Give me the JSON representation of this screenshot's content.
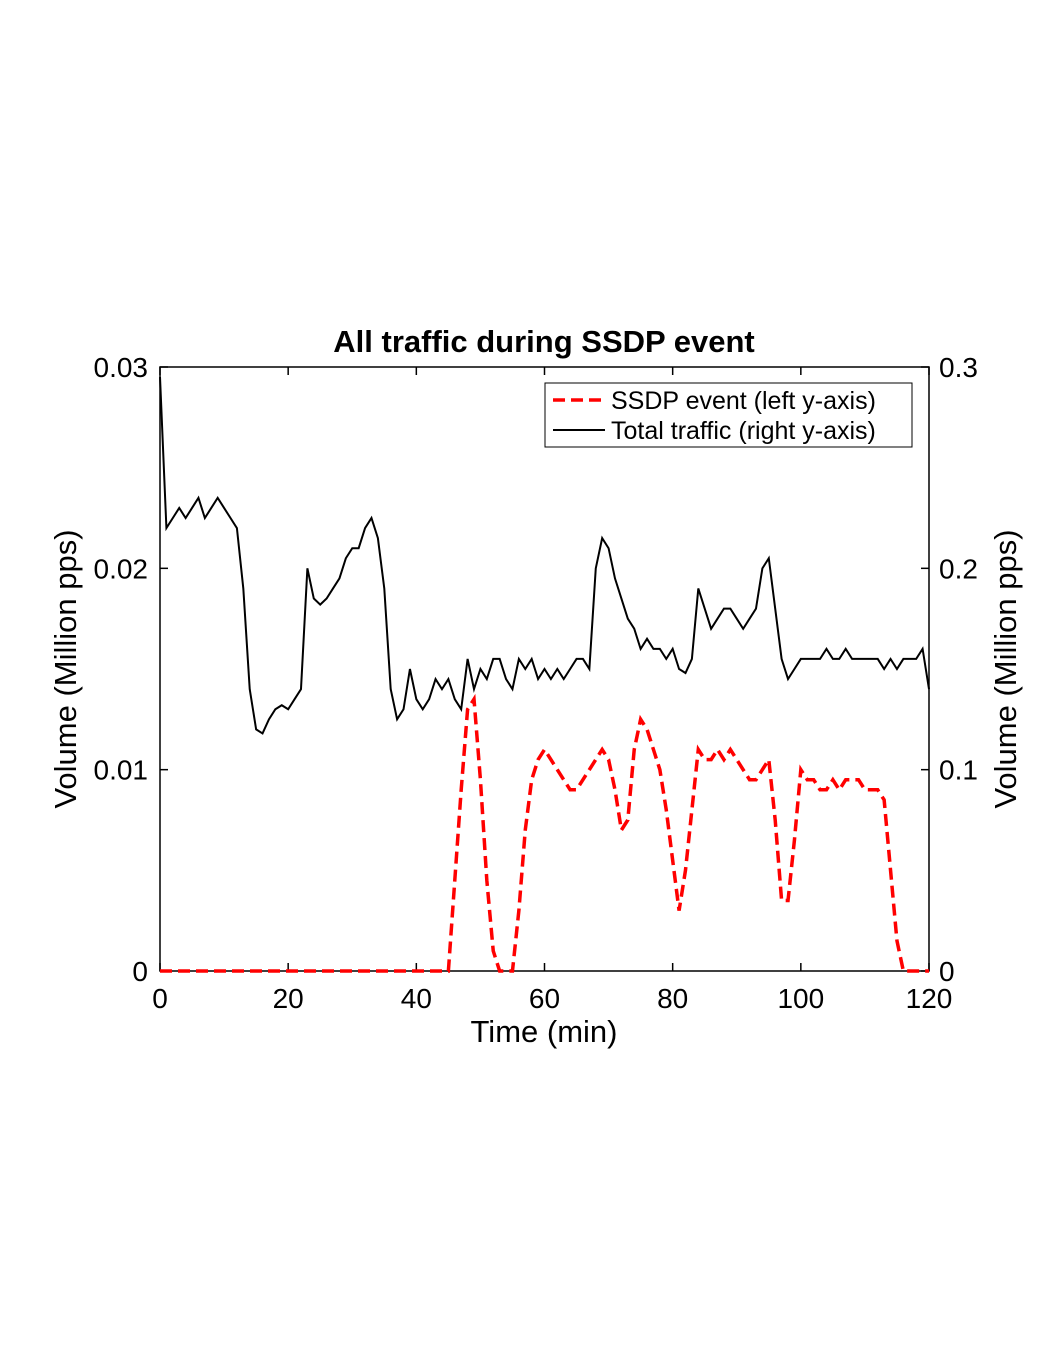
{
  "chart_data": {
    "type": "line",
    "title": "All traffic during SSDP event",
    "x_label": "Time (min)",
    "y_label": "Volume (Million pps)",
    "y2_label": "Volume (Million pps)",
    "x": [
      0,
      1,
      2,
      3,
      4,
      5,
      6,
      7,
      8,
      9,
      10,
      11,
      12,
      13,
      14,
      15,
      16,
      17,
      18,
      19,
      20,
      21,
      22,
      23,
      24,
      25,
      26,
      27,
      28,
      29,
      30,
      31,
      32,
      33,
      34,
      35,
      36,
      37,
      38,
      39,
      40,
      41,
      42,
      43,
      44,
      45,
      46,
      47,
      48,
      49,
      50,
      51,
      52,
      53,
      54,
      55,
      56,
      57,
      58,
      59,
      60,
      61,
      62,
      63,
      64,
      65,
      66,
      67,
      68,
      69,
      70,
      71,
      72,
      73,
      74,
      75,
      76,
      77,
      78,
      79,
      80,
      81,
      82,
      83,
      84,
      85,
      86,
      87,
      88,
      89,
      90,
      91,
      92,
      93,
      94,
      95,
      96,
      97,
      98,
      99,
      100,
      101,
      102,
      103,
      104,
      105,
      106,
      107,
      108,
      109,
      110,
      111,
      112,
      113,
      114,
      115,
      116,
      117,
      118,
      119,
      120
    ],
    "series": [
      {
        "name": "SSDP event (left y-axis)",
        "color": "#ff0000",
        "dash": true,
        "values": [
          0,
          0,
          0,
          0,
          0,
          0,
          0,
          0,
          0,
          0,
          0,
          0,
          0,
          0,
          0,
          0,
          0,
          0,
          0,
          0,
          0,
          0,
          0,
          0,
          0,
          0,
          0,
          0,
          0,
          0,
          0,
          0,
          0,
          0,
          0,
          0,
          0,
          0,
          0,
          0,
          0,
          0,
          0,
          0,
          0,
          0,
          0.0045,
          0.009,
          0.013,
          0.0135,
          0.0095,
          0.0045,
          0.001,
          0,
          0,
          0,
          0.003,
          0.007,
          0.0095,
          0.0105,
          0.011,
          0.0105,
          0.01,
          0.0095,
          0.009,
          0.009,
          0.0095,
          0.01,
          0.0105,
          0.011,
          0.0105,
          0.009,
          0.007,
          0.0075,
          0.011,
          0.0125,
          0.012,
          0.011,
          0.01,
          0.008,
          0.0055,
          0.003,
          0.005,
          0.008,
          0.011,
          0.0105,
          0.0105,
          0.011,
          0.0105,
          0.011,
          0.0105,
          0.01,
          0.0095,
          0.0095,
          0.01,
          0.0105,
          0.0075,
          0.0035,
          0.0035,
          0.0065,
          0.01,
          0.0095,
          0.0095,
          0.009,
          0.009,
          0.0095,
          0.009,
          0.0095,
          0.0095,
          0.0095,
          0.009,
          0.009,
          0.009,
          0.0085,
          0.005,
          0.0015,
          0,
          0,
          0,
          0,
          0
        ]
      },
      {
        "name": "Total traffic (right y-axis)",
        "color": "#000000",
        "axis": "y2",
        "values": [
          0.295,
          0.22,
          0.225,
          0.23,
          0.225,
          0.23,
          0.235,
          0.225,
          0.23,
          0.235,
          0.23,
          0.225,
          0.22,
          0.19,
          0.14,
          0.12,
          0.118,
          0.125,
          0.13,
          0.132,
          0.13,
          0.135,
          0.14,
          0.2,
          0.185,
          0.182,
          0.185,
          0.19,
          0.195,
          0.205,
          0.21,
          0.21,
          0.22,
          0.225,
          0.215,
          0.19,
          0.14,
          0.125,
          0.13,
          0.15,
          0.135,
          0.13,
          0.135,
          0.145,
          0.14,
          0.145,
          0.135,
          0.13,
          0.155,
          0.14,
          0.15,
          0.145,
          0.155,
          0.155,
          0.145,
          0.14,
          0.155,
          0.15,
          0.155,
          0.145,
          0.15,
          0.145,
          0.15,
          0.145,
          0.15,
          0.155,
          0.155,
          0.15,
          0.2,
          0.215,
          0.21,
          0.195,
          0.185,
          0.175,
          0.17,
          0.16,
          0.165,
          0.16,
          0.16,
          0.155,
          0.16,
          0.15,
          0.148,
          0.155,
          0.19,
          0.18,
          0.17,
          0.175,
          0.18,
          0.18,
          0.175,
          0.17,
          0.175,
          0.18,
          0.2,
          0.205,
          0.18,
          0.155,
          0.145,
          0.15,
          0.155,
          0.155,
          0.155,
          0.155,
          0.16,
          0.155,
          0.155,
          0.16,
          0.155,
          0.155,
          0.155,
          0.155,
          0.155,
          0.15,
          0.155,
          0.15,
          0.155,
          0.155,
          0.155,
          0.16,
          0.14
        ]
      }
    ],
    "xlim": [
      0,
      120
    ],
    "xticks": [
      0,
      20,
      40,
      60,
      80,
      100,
      120
    ],
    "ylim": [
      0,
      0.03
    ],
    "yticks": [
      0,
      0.01,
      0.02,
      0.03
    ],
    "y2lim": [
      0,
      0.3
    ],
    "y2ticks": [
      0,
      0.1,
      0.2,
      0.3
    ],
    "legend": "upper right"
  }
}
